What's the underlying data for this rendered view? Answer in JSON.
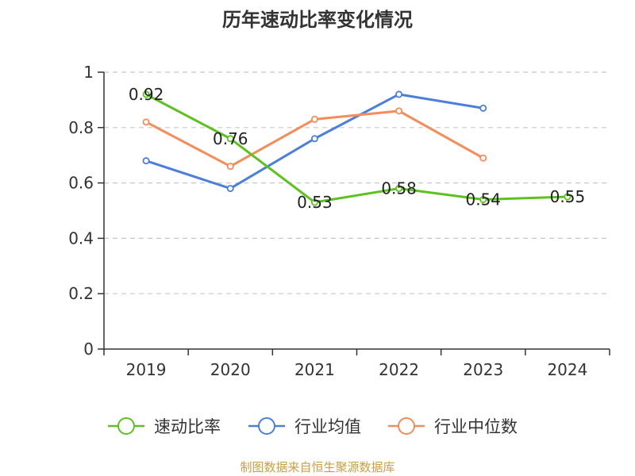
{
  "chart_data": {
    "type": "line",
    "title": "历年速动比率变化情况",
    "categories": [
      "2019",
      "2020",
      "2021",
      "2022",
      "2023",
      "2024"
    ],
    "ylim": [
      0,
      1
    ],
    "yticks": [
      "0",
      "0.2",
      "0.4",
      "0.6",
      "0.8",
      "1"
    ],
    "grid": true,
    "legend_position": "bottom",
    "series": [
      {
        "name": "速动比率",
        "color": "#5bc21e",
        "values": [
          0.92,
          0.76,
          0.53,
          0.58,
          0.54,
          0.55
        ],
        "labels": [
          "0.92",
          "0.76",
          "0.53",
          "0.58",
          "0.54",
          "0.55"
        ]
      },
      {
        "name": "行业均值",
        "color": "#4c7fdb",
        "values": [
          0.68,
          0.58,
          0.76,
          0.92,
          0.87,
          null
        ]
      },
      {
        "name": "行业中位数",
        "color": "#f58c5a",
        "values": [
          0.82,
          0.66,
          0.83,
          0.86,
          0.69,
          null
        ]
      }
    ]
  },
  "footer": {
    "source": "制图数据来自恒生聚源数据库"
  }
}
